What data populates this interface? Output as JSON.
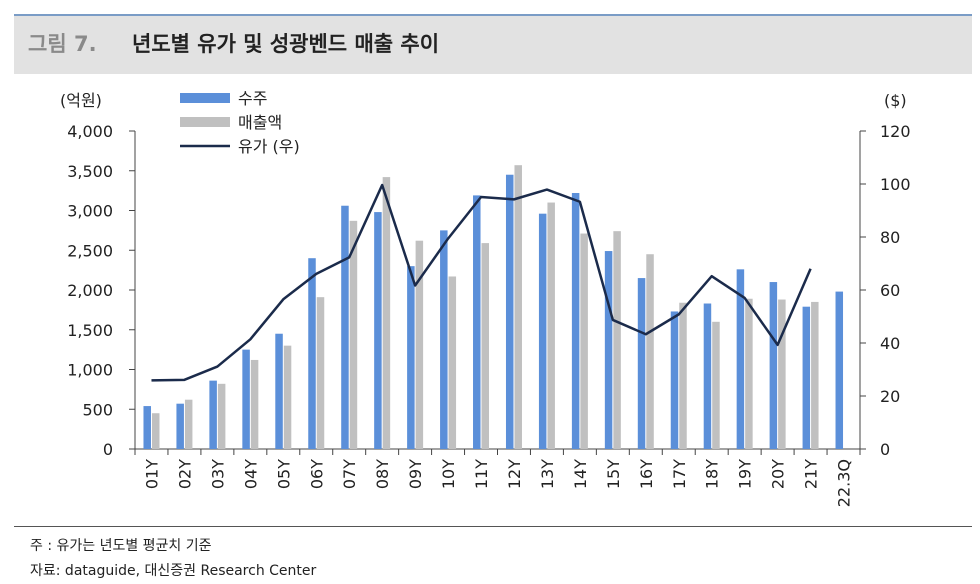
{
  "header": {
    "figure_no": "그림 7.",
    "title": "년도별 유가 및 성광벤드 매출 추이"
  },
  "footer": {
    "note": "주 : 유가는 년도별 평균치 기준",
    "source": "자료:  dataguide, 대신증권 Research Center"
  },
  "colors": {
    "orders": "#5b8fd9",
    "sales": "#c0c0c0",
    "oil": "#1b2b4b"
  },
  "chart_data": {
    "type": "bar",
    "title": "년도별 유가 및 성광벤드 매출 추이",
    "categories": [
      "01Y",
      "02Y",
      "03Y",
      "04Y",
      "05Y",
      "06Y",
      "07Y",
      "08Y",
      "09Y",
      "10Y",
      "11Y",
      "12Y",
      "13Y",
      "14Y",
      "15Y",
      "16Y",
      "17Y",
      "18Y",
      "19Y",
      "20Y",
      "21Y",
      "22.3Q"
    ],
    "y_left": {
      "unit_label": "(억원)",
      "range": [
        0,
        4000
      ],
      "ticks": [
        0,
        500,
        1000,
        1500,
        2000,
        2500,
        3000,
        3500,
        4000
      ],
      "tick_labels": [
        "0",
        "500",
        "1,000",
        "1,500",
        "2,000",
        "2,500",
        "3,000",
        "3,500",
        "4,000"
      ]
    },
    "y_right": {
      "unit_label": "($)",
      "range": [
        0,
        120
      ],
      "ticks": [
        0,
        20,
        40,
        60,
        80,
        100,
        120
      ],
      "tick_labels": [
        "0",
        "20",
        "40",
        "60",
        "80",
        "100",
        "120"
      ]
    },
    "series": [
      {
        "name": "수주",
        "type": "bar",
        "axis": "left",
        "values": [
          540,
          570,
          860,
          1250,
          1450,
          2400,
          3060,
          2980,
          2300,
          2750,
          3190,
          3450,
          2960,
          3220,
          2490,
          2150,
          1730,
          1830,
          2260,
          2100,
          1790,
          1980
        ]
      },
      {
        "name": "매출액",
        "type": "bar",
        "axis": "left",
        "values": [
          450,
          620,
          820,
          1120,
          1300,
          1910,
          2870,
          3420,
          2620,
          2170,
          2590,
          3570,
          3100,
          2710,
          2740,
          2450,
          1840,
          1600,
          1890,
          1880,
          1850,
          null
        ]
      },
      {
        "name": "유가 (우)",
        "type": "line",
        "axis": "right",
        "values": [
          25.9,
          26.1,
          31.1,
          41.4,
          56.5,
          66.1,
          72.3,
          99.6,
          61.7,
          79.4,
          95.1,
          94.2,
          97.9,
          93.3,
          48.7,
          43.3,
          50.8,
          65.2,
          57.0,
          39.3,
          68.0,
          null
        ]
      }
    ],
    "legend_position": "top-left"
  }
}
